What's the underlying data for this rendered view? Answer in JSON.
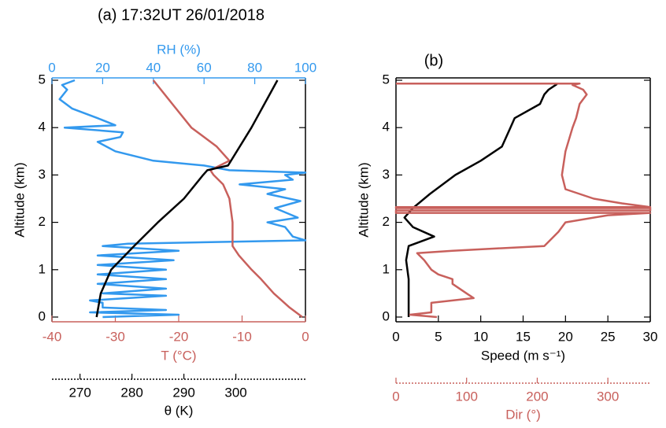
{
  "chart_data": [
    {
      "type": "line",
      "title": "(a) 17:32UT 26/01/2018",
      "ylabel": "Altitude (km)",
      "ylim": [
        -0.1,
        5.05
      ],
      "yticks": [
        0,
        1,
        2,
        3,
        4,
        5
      ],
      "xlabel": "T (°C)",
      "xlim": [
        -40,
        0
      ],
      "xticks": [
        -40,
        -30,
        -20,
        -10,
        0
      ],
      "x2label": "RH (%)",
      "x2lim": [
        0,
        100
      ],
      "x2ticks": [
        0,
        20,
        40,
        60,
        80,
        100
      ],
      "x3label": "θ (K)",
      "x3lim": [
        264.6,
        313.4
      ],
      "x3ticks": [
        270,
        280,
        290,
        300
      ],
      "axis_colors": {
        "x": "#c8605c",
        "x2": "#3399ee",
        "x3": "#000000"
      },
      "series": [
        {
          "axis": "x2",
          "color": "#3399ee",
          "values": [
            20,
            50,
            15,
            45,
            20,
            20,
            15,
            45,
            20,
            45,
            18,
            45,
            18,
            45,
            18,
            48,
            18,
            50,
            20,
            30,
            100,
            95,
            92,
            85,
            97,
            88,
            98,
            85,
            92,
            74,
            95,
            92,
            100,
            70,
            60,
            40,
            25,
            18,
            27,
            28,
            5,
            25,
            18,
            8,
            3,
            6,
            4,
            9
          ],
          "altitude": [
            0,
            0.05,
            0.1,
            0.15,
            0.2,
            0.3,
            0.35,
            0.45,
            0.5,
            0.6,
            0.7,
            0.8,
            0.9,
            1.0,
            1.1,
            1.2,
            1.3,
            1.4,
            1.5,
            1.55,
            1.62,
            1.7,
            1.9,
            2.0,
            2.1,
            2.3,
            2.45,
            2.6,
            2.7,
            2.8,
            2.9,
            3.0,
            3.05,
            3.1,
            3.2,
            3.3,
            3.5,
            3.7,
            3.8,
            3.9,
            4.0,
            4.05,
            4.2,
            4.4,
            4.6,
            4.8,
            4.9,
            5.0
          ]
        },
        {
          "axis": "x",
          "color": "#c8605c",
          "values": [
            -0.5,
            -2.5,
            -5,
            -7,
            -8.5,
            -10.5,
            -11.5,
            -11.5,
            -12,
            -13,
            -14.5,
            -15,
            -12,
            -14,
            -18,
            -21,
            -24
          ],
          "altitude": [
            0,
            0.2,
            0.5,
            0.8,
            1.0,
            1.3,
            1.5,
            2.0,
            2.5,
            2.8,
            3.0,
            3.1,
            3.3,
            3.6,
            4.0,
            4.5,
            5.0
          ]
        },
        {
          "axis": "x3",
          "color": "#000000",
          "values": [
            273.2,
            274,
            276,
            280.4,
            285,
            290,
            293.7,
            294.5,
            298.5,
            303,
            306,
            308
          ],
          "altitude": [
            0,
            0.5,
            1.0,
            1.5,
            2.0,
            2.5,
            3.0,
            3.1,
            3.2,
            4.0,
            4.6,
            5.0
          ]
        }
      ]
    },
    {
      "type": "line",
      "title": "(b)",
      "ylabel": "Altitude (km)",
      "ylim": [
        -0.1,
        5.05
      ],
      "yticks": [
        0,
        1,
        2,
        3,
        4,
        5
      ],
      "xlabel": "Speed (m s⁻¹)",
      "xlim": [
        0,
        30
      ],
      "xticks": [
        0,
        5,
        10,
        15,
        20,
        25,
        30
      ],
      "x3label": "Dir (°)",
      "x3lim": [
        0,
        360
      ],
      "x3ticks": [
        0,
        100,
        200,
        300
      ],
      "axis_colors": {
        "x": "#000000",
        "x3": "#c8605c"
      },
      "series": [
        {
          "axis": "x",
          "color": "#000000",
          "values": [
            1.5,
            1.5,
            1.5,
            1.5,
            1.2,
            1.5,
            4.5,
            2,
            1,
            2,
            4,
            7,
            10,
            12.5,
            13.5,
            14,
            17,
            17.5,
            18,
            19
          ],
          "altitude": [
            0,
            0.3,
            0.5,
            0.8,
            1.2,
            1.5,
            1.7,
            1.9,
            2.1,
            2.3,
            2.6,
            3.0,
            3.3,
            3.6,
            4.0,
            4.2,
            4.5,
            4.7,
            4.8,
            4.92
          ]
        },
        {
          "axis": "x3",
          "color": "#c8605c",
          "values": [
            58,
            20,
            50,
            50,
            110,
            100,
            80,
            80,
            60,
            50,
            40,
            30,
            80,
            210,
            230,
            240,
            300,
            360,
            0,
            0,
            360,
            360,
            0,
            0,
            360,
            320,
            280,
            240,
            235,
            240,
            250,
            255,
            260,
            270,
            265,
            250,
            260,
            0
          ],
          "altitude": [
            0,
            0.05,
            0.1,
            0.3,
            0.4,
            0.5,
            0.7,
            0.8,
            0.9,
            1.0,
            1.2,
            1.35,
            1.4,
            1.5,
            1.8,
            2.0,
            2.15,
            2.2,
            2.2,
            2.25,
            2.25,
            2.3,
            2.3,
            2.32,
            2.32,
            2.4,
            2.5,
            2.7,
            3.0,
            3.5,
            4.0,
            4.2,
            4.5,
            4.7,
            4.8,
            4.9,
            4.93,
            4.93
          ]
        }
      ]
    }
  ]
}
